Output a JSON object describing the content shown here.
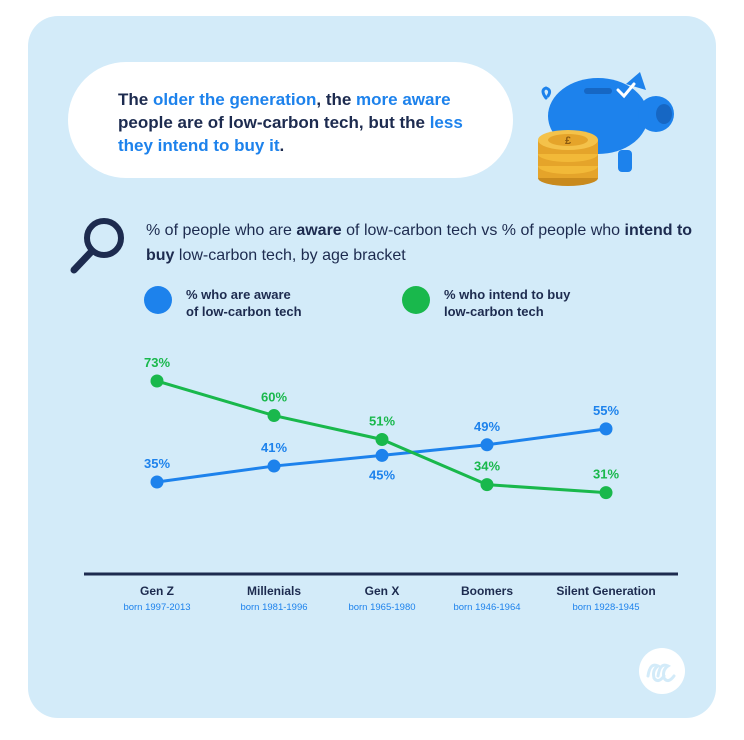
{
  "headline": {
    "p1": "The ",
    "h1": "older the generation",
    "p2": ", the ",
    "h2": "more aware",
    "p3": " people are of low-carbon tech, but the ",
    "h3": "less they intend to buy it",
    "p4": "."
  },
  "subtitle": {
    "p1": "% of people who are ",
    "b1": "aware",
    "p2": " of low-carbon tech vs % of people who ",
    "b2": "intend to buy",
    "p3": " low-carbon tech, by age bracket"
  },
  "legend": {
    "aware_line1": "% who are aware",
    "aware_line2": "of low-carbon tech",
    "intend_line1": "% who intend to buy",
    "intend_line2": "low-carbon tech"
  },
  "categories_meta": [
    {
      "name": "Gen Z",
      "born": "born 1997-2013"
    },
    {
      "name": "Millenials",
      "born": "born 1981-1996"
    },
    {
      "name": "Gen X",
      "born": "born 1965-1980"
    },
    {
      "name": "Boomers",
      "born": "born 1946-1964"
    },
    {
      "name": "Silent Generation",
      "born": "born 1928-1945"
    }
  ],
  "icons": {
    "search": "magnifying-glass-icon",
    "piggy": "piggy-bank-icon",
    "coins": "pound-coins-icon",
    "logo": "brand-logo-icon"
  },
  "colors": {
    "aware": "#1d82ec",
    "intend": "#19b84c",
    "dark": "#1d2b4f",
    "background": "#d3ebf9"
  },
  "chart_data": {
    "type": "line",
    "categories": [
      "Gen Z",
      "Millenials",
      "Gen X",
      "Boomers",
      "Silent Generation"
    ],
    "series": [
      {
        "name": "% who are aware of low-carbon tech",
        "values": [
          35,
          41,
          45,
          49,
          55
        ],
        "labels": [
          "35%",
          "41%",
          "45%",
          "49%",
          "55%"
        ]
      },
      {
        "name": "% who intend to buy low-carbon tech",
        "values": [
          73,
          60,
          51,
          34,
          31
        ],
        "labels": [
          "73%",
          "60%",
          "51%",
          "34%",
          "31%"
        ]
      }
    ],
    "unit": "%",
    "legend": "top"
  }
}
